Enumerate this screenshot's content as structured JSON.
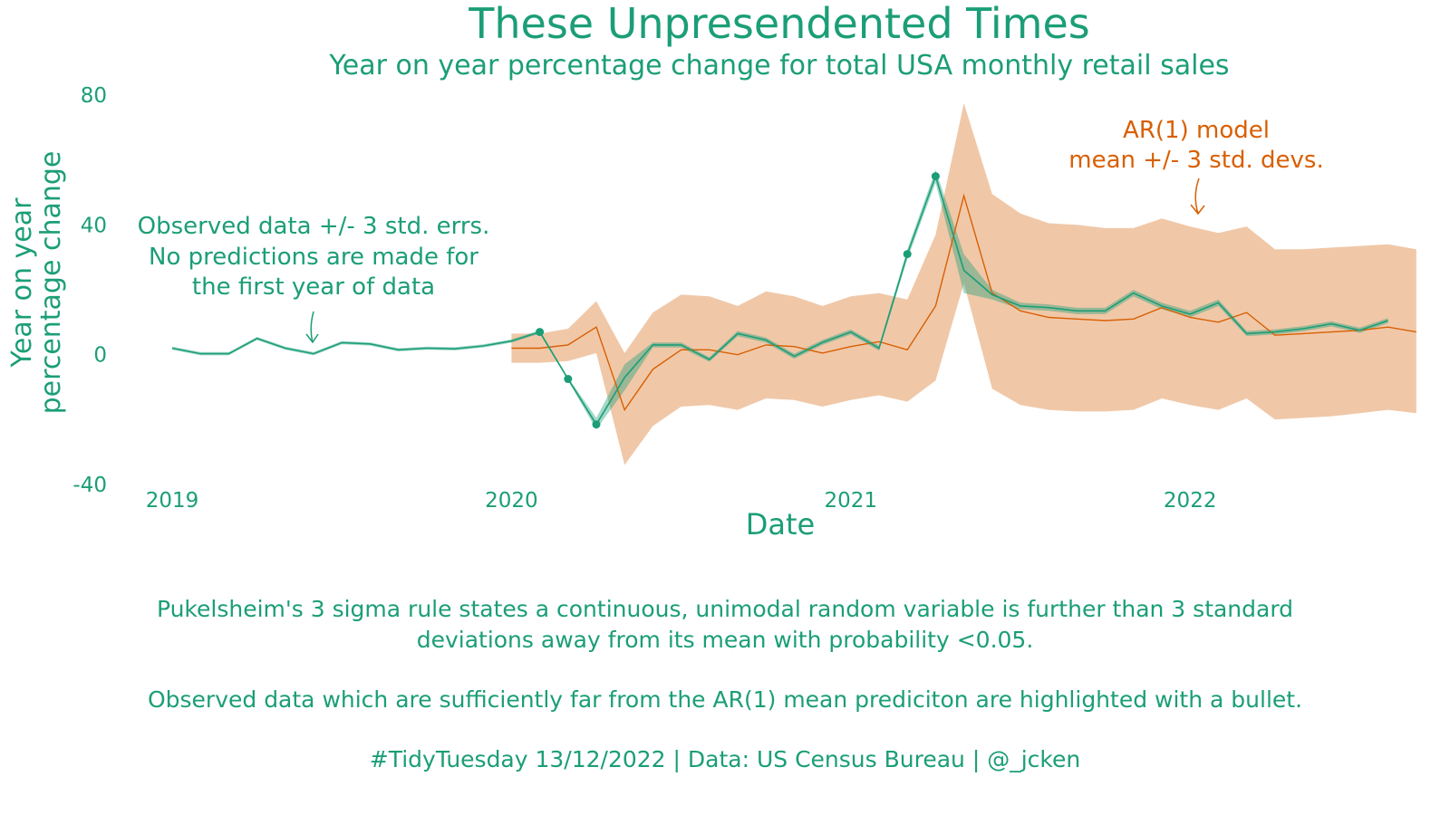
{
  "colors": {
    "observed": "#1b9e77",
    "observed_band": "#1b9e77",
    "model": "#d95f02",
    "model_band": "#f0c8a8"
  },
  "chart_data": {
    "type": "line",
    "title": "These Unpresendented Times",
    "subtitle": "Year on year percentage change for total USA monthly retail sales",
    "xlabel": "Date",
    "ylabel": [
      "Year on year",
      "percentage change"
    ],
    "xlim": [
      "2019-01",
      "2022-08"
    ],
    "ylim": [
      -40,
      80
    ],
    "x_ticks": [
      {
        "label": "2019",
        "value": "2019-01"
      },
      {
        "label": "2020",
        "value": "2020-01"
      },
      {
        "label": "2021",
        "value": "2021-01"
      },
      {
        "label": "2022",
        "value": "2022-01"
      }
    ],
    "y_ticks": [
      {
        "label": "80",
        "value": 80
      },
      {
        "label": "40",
        "value": 40
      },
      {
        "label": "0",
        "value": 0
      },
      {
        "label": "-40",
        "value": -40
      }
    ],
    "grid": false,
    "legend": "none",
    "x": [
      "2019-01",
      "2019-02",
      "2019-03",
      "2019-04",
      "2019-05",
      "2019-06",
      "2019-07",
      "2019-08",
      "2019-09",
      "2019-10",
      "2019-11",
      "2019-12",
      "2020-01",
      "2020-02",
      "2020-03",
      "2020-04",
      "2020-05",
      "2020-06",
      "2020-07",
      "2020-08",
      "2020-09",
      "2020-10",
      "2020-11",
      "2020-12",
      "2021-01",
      "2021-02",
      "2021-03",
      "2021-04",
      "2021-05",
      "2021-06",
      "2021-07",
      "2021-08",
      "2021-09",
      "2021-10",
      "2021-11",
      "2021-12",
      "2022-01",
      "2022-02",
      "2022-03",
      "2022-04",
      "2022-05",
      "2022-06",
      "2022-07",
      "2022-08"
    ],
    "observed": [
      2.0,
      0.3,
      0.3,
      5.0,
      2.0,
      0.3,
      3.7,
      3.3,
      1.5,
      2.0,
      1.8,
      2.7,
      4.2,
      7.0,
      -7.5,
      -21.5,
      -7.0,
      3.0,
      3.0,
      -1.5,
      6.5,
      4.5,
      -0.5,
      3.8,
      7.0,
      2.0,
      31.0,
      55.0,
      26.0,
      18.5,
      15.0,
      14.5,
      13.5,
      13.5,
      19.0,
      15.0,
      12.5,
      16.0,
      6.5,
      7.0,
      8.0,
      9.5,
      7.5,
      10.5
    ],
    "observed_band": {
      "upper": [
        2.5,
        0.8,
        0.8,
        5.5,
        2.5,
        0.8,
        4.2,
        3.8,
        2.0,
        2.5,
        2.3,
        3.2,
        4.7,
        7.5,
        -7.0,
        -19.5,
        -3.0,
        3.8,
        3.8,
        -0.8,
        7.3,
        5.3,
        0.3,
        4.6,
        7.8,
        2.8,
        32.5,
        57.0,
        31.0,
        20.0,
        16.0,
        15.5,
        14.5,
        14.5,
        20.0,
        16.0,
        13.5,
        17.0,
        7.3,
        7.8,
        8.8,
        10.3,
        8.3,
        11.3
      ],
      "lower": [
        1.5,
        -0.2,
        -0.2,
        4.5,
        1.5,
        -0.2,
        3.2,
        2.8,
        1.0,
        1.5,
        1.3,
        2.2,
        3.7,
        6.5,
        -8.0,
        -23.0,
        -11.0,
        2.2,
        2.2,
        -2.2,
        5.7,
        3.7,
        -1.3,
        3.0,
        6.2,
        1.2,
        29.5,
        53.0,
        19.0,
        17.0,
        14.0,
        13.5,
        12.5,
        12.5,
        18.0,
        14.0,
        11.5,
        15.0,
        5.7,
        6.2,
        7.2,
        8.7,
        6.7,
        9.7
      ]
    },
    "model_start": "2020-01",
    "model_mean": [
      2.0,
      2.0,
      3.0,
      8.5,
      -17.0,
      -4.5,
      1.5,
      1.5,
      0.0,
      3.0,
      2.5,
      0.5,
      2.5,
      4.0,
      1.5,
      15.0,
      49.0,
      19.0,
      13.5,
      11.5,
      11.0,
      10.5,
      11.0,
      14.5,
      11.5,
      10.0,
      13.0,
      6.0,
      6.5,
      7.0,
      7.5,
      8.5,
      7.0
    ],
    "model_upper": [
      6.5,
      6.5,
      8.0,
      16.5,
      0.5,
      13.0,
      18.5,
      18.0,
      15.0,
      19.5,
      18.0,
      15.0,
      18.0,
      19.0,
      17.0,
      37.0,
      77.5,
      49.5,
      43.5,
      40.5,
      40.0,
      39.0,
      39.0,
      42.0,
      39.5,
      37.5,
      39.5,
      32.5,
      32.5,
      33.0,
      33.5,
      34.0,
      32.5
    ],
    "model_lower": [
      -2.5,
      -2.5,
      -2.0,
      0.5,
      -34.0,
      -22.0,
      -16.0,
      -15.5,
      -17.0,
      -13.5,
      -14.0,
      -16.0,
      -14.0,
      -12.5,
      -14.5,
      -8.0,
      22.0,
      -10.5,
      -15.5,
      -17.0,
      -17.5,
      -17.5,
      -17.0,
      -13.5,
      -15.5,
      -17.0,
      -13.5,
      -20.0,
      -19.5,
      -19.0,
      -18.0,
      -17.0,
      -18.0
    ],
    "highlighted_observations": [
      {
        "x": "2020-02",
        "y": 7.0
      },
      {
        "x": "2020-03",
        "y": -7.5
      },
      {
        "x": "2020-04",
        "y": -21.5
      },
      {
        "x": "2021-03",
        "y": 31.0
      },
      {
        "x": "2021-04",
        "y": 55.0
      }
    ],
    "annotations": [
      {
        "id": "observed",
        "lines": [
          "Observed data +/- 3 std. errs.",
          "No predictions are made for",
          "the first year of data"
        ]
      },
      {
        "id": "model",
        "lines": [
          "AR(1) model",
          "mean +/- 3 std. devs."
        ]
      }
    ]
  },
  "caption": {
    "paragraph1": [
      "Pukelsheim's 3 sigma rule states a continuous, unimodal random variable is further than 3 standard",
      "deviations away from its mean with probability <0.05."
    ],
    "paragraph2": "Observed data which are sufficiently far from the AR(1) mean prediciton are highlighted with a bullet.",
    "credit": "#TidyTuesday 13/12/2022 | Data: US Census Bureau | @_jcken"
  }
}
